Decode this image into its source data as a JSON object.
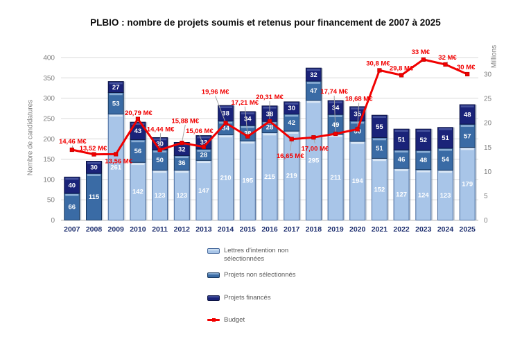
{
  "chart_data": {
    "type": "bar",
    "subtype": "stacked-bars-with-secondary-axis-line",
    "title": "PLBIO : nombre de projets soumis et retenus pour financement de 2007 à 2025",
    "ylabel_left": "Nombre de candidatures",
    "ylabel_right": "Millions",
    "axis_left": {
      "min": 0,
      "max": 400,
      "step": 50
    },
    "axis_right": {
      "min": 0,
      "max": 30,
      "step": 5
    },
    "grid": true,
    "legend_position": "bottom-center",
    "categories": [
      "2007",
      "2008",
      "2009",
      "2010",
      "2011",
      "2012",
      "2013",
      "2014",
      "2015",
      "2016",
      "2017",
      "2018",
      "2019",
      "2020",
      "2021",
      "2022",
      "2023",
      "2024",
      "2025"
    ],
    "series": [
      {
        "name": "Lettres d'intention non sélectionnées",
        "type": "bar",
        "axis": "left",
        "color": "#A8C5E8",
        "bevel": "#DCE9F6",
        "border": "#46699C",
        "values": [
          0,
          0,
          261,
          142,
          123,
          123,
          147,
          210,
          195,
          215,
          219,
          295,
          211,
          194,
          152,
          127,
          124,
          123,
          179
        ]
      },
      {
        "name": "Projets non sélectionnés",
        "type": "bar",
        "axis": "left",
        "color": "#3A6BA5",
        "bevel": "#8FB2D6",
        "border": "#17365D",
        "values": [
          66,
          115,
          53,
          56,
          50,
          36,
          28,
          34,
          38,
          28,
          42,
          47,
          49,
          50,
          51,
          46,
          48,
          54,
          57
        ]
      },
      {
        "name": "Projets financés",
        "type": "bar",
        "axis": "left",
        "color": "#1A2379",
        "bevel": "#47549E",
        "border": "#0D1445",
        "values": [
          40,
          30,
          27,
          43,
          30,
          32,
          33,
          38,
          34,
          38,
          30,
          32,
          34,
          35,
          55,
          51,
          52,
          51,
          48
        ]
      },
      {
        "name": "Budget",
        "type": "line",
        "axis": "right",
        "color": "#F10000",
        "values": [
          14.46,
          13.52,
          13.56,
          20.79,
          14.44,
          15.88,
          15.06,
          19.96,
          17.21,
          20.31,
          16.65,
          17.0,
          17.74,
          18.68,
          30.8,
          29.8,
          33,
          32,
          30
        ],
        "labels": [
          "14,46 M€",
          "13,52 M€",
          "13,56 M€",
          "20,79 M€",
          "14,44 M€",
          "15,88 M€",
          "15,06 M€",
          "19,96 M€",
          "17,21 M€",
          "20,31 M€",
          "16,65 M€",
          "17,00 M€",
          "17,74 M€",
          "18,68 M€",
          "30,8 M€",
          "29,8 M€",
          "33 M€",
          "32 M€",
          "30 M€"
        ],
        "label_offsets": [
          [
            1,
            -12,
            1
          ],
          [
            -1,
            -9,
            1
          ],
          [
            4,
            10,
            0
          ],
          [
            1,
            -9,
            0
          ],
          [
            1,
            -30,
            1
          ],
          [
            5,
            -32,
            1
          ],
          [
            -6,
            -23,
            1
          ],
          [
            -15,
            -45,
            1
          ],
          [
            -4,
            -49,
            1
          ],
          [
            0,
            -35,
            1
          ],
          [
            -2,
            24,
            1
          ],
          [
            2,
            16,
            1
          ],
          [
            -2,
            -61,
            1
          ],
          [
            2,
            -44,
            1
          ],
          [
            -2,
            -10,
            0
          ],
          [
            0,
            -10,
            0
          ],
          [
            -4,
            -11,
            0
          ],
          [
            3,
            -10,
            1
          ],
          [
            -2,
            -10,
            0
          ]
        ]
      }
    ]
  },
  "colors": {
    "gridline": "#D9D9D9",
    "axis_line": "#A6A6A6",
    "tick_text": "#7F7F7F",
    "year_label": "#1F3070",
    "bar_value_text": "#FFFFFF",
    "leader_line": "#A6A6A6"
  }
}
